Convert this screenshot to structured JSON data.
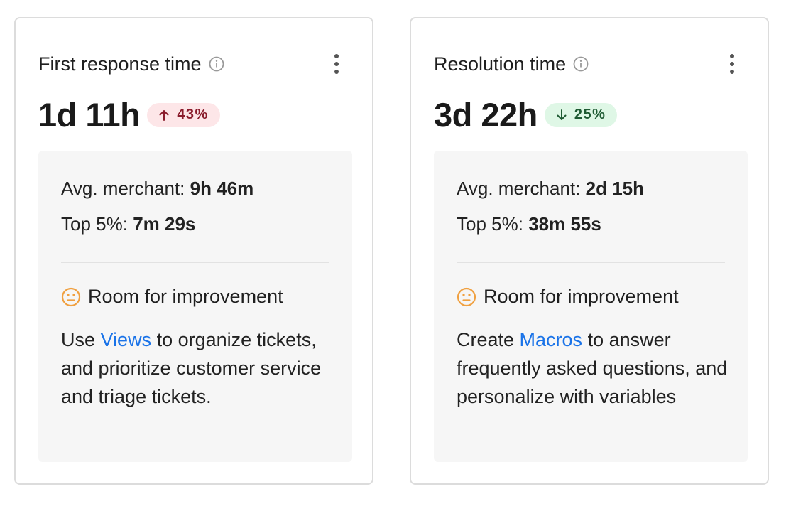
{
  "cards": [
    {
      "title": "First response time",
      "value": "1d 11h",
      "trend": {
        "direction": "up",
        "percent": "43%"
      },
      "benchmarks": {
        "avg_label": "Avg. merchant:",
        "avg_value": "9h 46m",
        "top_label": "Top 5%:",
        "top_value": "7m 29s"
      },
      "status": "Room for improvement",
      "tip": {
        "before": "Use ",
        "link": "Views",
        "after": " to organize tickets, and prioritize customer service and triage tickets."
      }
    },
    {
      "title": "Resolution time",
      "value": "3d 22h",
      "trend": {
        "direction": "down",
        "percent": "25%"
      },
      "benchmarks": {
        "avg_label": "Avg. merchant:",
        "avg_value": "2d 15h",
        "top_label": "Top 5%:",
        "top_value": "38m 55s"
      },
      "status": "Room for improvement",
      "tip": {
        "before": "Create ",
        "link": "Macros",
        "after": " to answer frequently asked questions, and personalize with variables"
      }
    }
  ],
  "icons": {
    "info": "info-icon",
    "menu": "more-vertical-icon",
    "status": "neutral-face-icon",
    "trend_up": "arrow-up-icon",
    "trend_down": "arrow-down-icon"
  },
  "colors": {
    "link": "#1a73e8",
    "status_icon": "#f0a040",
    "trend_up_bg": "#fde6e8",
    "trend_up_text": "#8a1c2c",
    "trend_down_bg": "#dff7e6",
    "trend_down_text": "#1e5a32"
  }
}
